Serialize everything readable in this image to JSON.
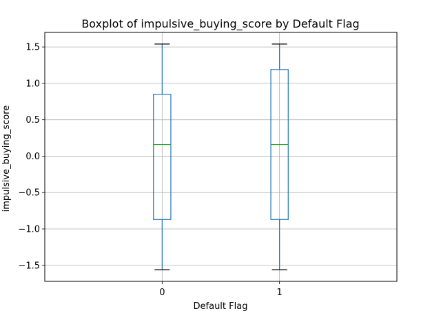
{
  "chart_data": {
    "type": "box",
    "title": "Boxplot of impulsive_buying_score by Default Flag",
    "xlabel": "Default Flag",
    "ylabel": "impulsive_buying_score",
    "ylim": [
      -1.72,
      1.7
    ],
    "yticks": [
      1.5,
      1.0,
      0.5,
      0.0,
      -0.5,
      -1.0,
      -1.5
    ],
    "ytick_labels": [
      "1.5",
      "1.0",
      "0.5",
      "0.0",
      "−0.5",
      "−1.0",
      "−1.5"
    ],
    "grid": true,
    "categories": [
      "0",
      "1"
    ],
    "boxes": [
      {
        "category": "0",
        "whisker_low": -1.56,
        "q1": -0.87,
        "median": 0.16,
        "q3": 0.85,
        "whisker_high": 1.54
      },
      {
        "category": "1",
        "whisker_low": -1.56,
        "q1": -0.87,
        "median": 0.16,
        "q3": 1.19,
        "whisker_high": 1.54
      }
    ],
    "colors": {
      "box": "#1f77b4",
      "median": "#2ca02c",
      "cap": "#000000",
      "grid": "#b0b0b0"
    }
  }
}
